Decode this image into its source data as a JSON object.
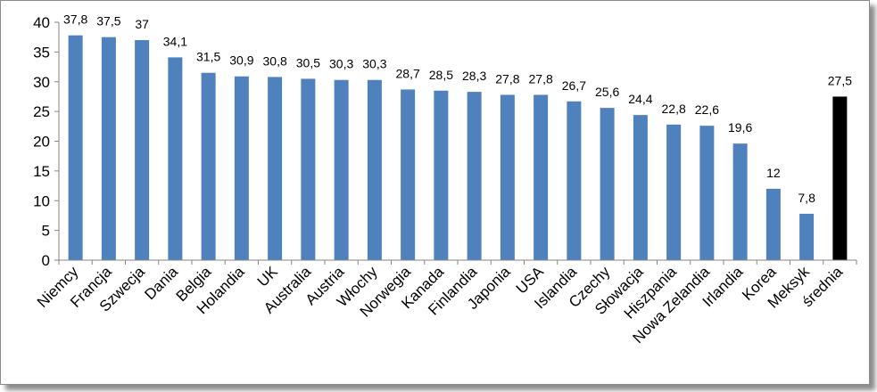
{
  "chart_data": {
    "type": "bar",
    "title": "",
    "xlabel": "",
    "ylabel": "",
    "ylim": [
      0,
      40
    ],
    "yticks": [
      0,
      5,
      10,
      15,
      20,
      25,
      30,
      35,
      40
    ],
    "grid": false,
    "legend": "none",
    "categories": [
      "Niemcy",
      "Francja",
      "Szwecja",
      "Dania",
      "Belgia",
      "Holandia",
      "UK",
      "Australia",
      "Austria",
      "Włochy",
      "Norwegia",
      "Kanada",
      "Finlandia",
      "Japonia",
      "USA",
      "Islandia",
      "Czechy",
      "Słowacja",
      "Hiszpania",
      "Nowa Zelandia",
      "Irlandia",
      "Korea",
      "Meksyk",
      "średnia"
    ],
    "values": [
      37.8,
      37.5,
      37,
      34.1,
      31.5,
      30.9,
      30.8,
      30.5,
      30.3,
      30.3,
      28.7,
      28.5,
      28.3,
      27.8,
      27.8,
      26.7,
      25.6,
      24.4,
      22.8,
      22.6,
      19.6,
      12,
      7.8,
      27.5
    ],
    "data_labels": [
      "37,8",
      "37,5",
      "37",
      "34,1",
      "31,5",
      "30,9",
      "30,8",
      "30,5",
      "30,3",
      "30,3",
      "28,7",
      "28,5",
      "28,3",
      "27,8",
      "27,8",
      "26,7",
      "25,6",
      "24,4",
      "22,8",
      "22,6",
      "19,6",
      "12",
      "7,8",
      "27,5"
    ],
    "colors": {
      "bar": "#4f81bd",
      "highlight": "#000000",
      "highlight_index": 23,
      "axis": "#868686"
    }
  }
}
